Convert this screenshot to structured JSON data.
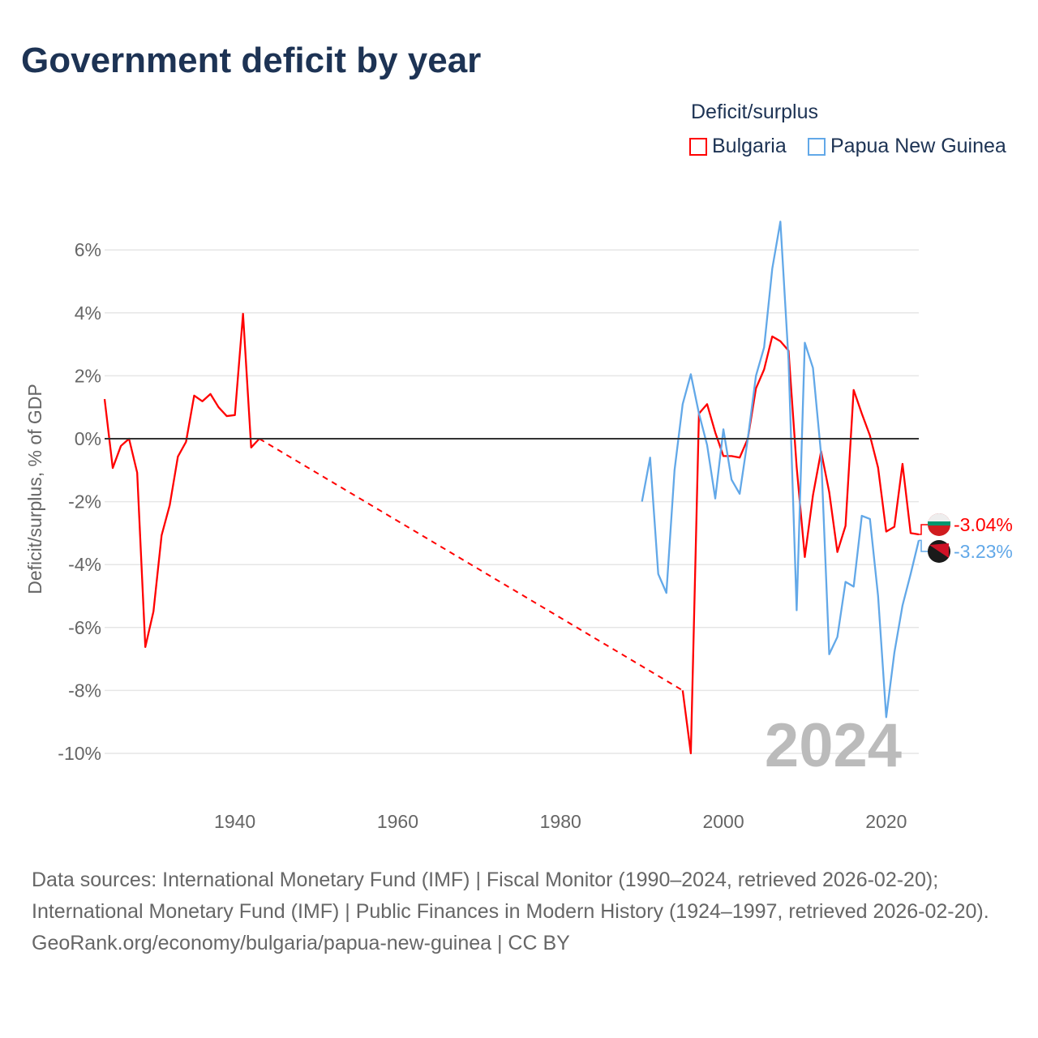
{
  "title": "Government deficit by year",
  "legend": {
    "title": "Deficit/surplus",
    "items": [
      {
        "name": "Bulgaria",
        "color": "#ff0000"
      },
      {
        "name": "Papua New Guinea",
        "color": "#62a8e8"
      }
    ]
  },
  "chart_data": {
    "type": "line",
    "title": "Government deficit by year",
    "xlabel": "",
    "ylabel": "Deficit/surplus, % of GDP",
    "xlim": [
      1924,
      2024
    ],
    "ylim": [
      -10,
      6
    ],
    "xticks": [
      1940,
      1960,
      1980,
      2000,
      2020
    ],
    "yticks": [
      6,
      4,
      2,
      0,
      -2,
      -4,
      -6,
      -8,
      -10
    ],
    "ytick_labels": [
      "6%",
      "4%",
      "2%",
      "0%",
      "-2%",
      "-4%",
      "-6%",
      "-8%",
      "-10%"
    ],
    "watermark": "2024",
    "series": [
      {
        "name": "Bulgaria",
        "color": "#ff0000",
        "end_label": "-3.04%",
        "x": [
          1924,
          1925,
          1926,
          1927,
          1928,
          1929,
          1930,
          1931,
          1932,
          1933,
          1934,
          1935,
          1936,
          1937,
          1938,
          1939,
          1940,
          1941,
          1942,
          1943,
          1995,
          1996,
          1997,
          1998,
          1999,
          2000,
          2001,
          2002,
          2003,
          2004,
          2005,
          2006,
          2007,
          2008,
          2009,
          2010,
          2011,
          2012,
          2013,
          2014,
          2015,
          2016,
          2017,
          2018,
          2019,
          2020,
          2021,
          2022,
          2023,
          2024
        ],
        "y": [
          1.26,
          -0.93,
          -0.23,
          0,
          -1.08,
          -6.62,
          -5.49,
          -3.07,
          -2.11,
          -0.57,
          -0.1,
          1.37,
          1.19,
          1.42,
          1.0,
          0.72,
          0.75,
          3.97,
          -0.28,
          0,
          -8.0,
          -10.0,
          0.8,
          1.1,
          0.2,
          -0.55,
          -0.55,
          -0.6,
          0.0,
          1.6,
          2.2,
          3.25,
          3.1,
          2.8,
          -0.9,
          -3.76,
          -1.8,
          -0.4,
          -1.7,
          -3.6,
          -2.77,
          1.55,
          0.8,
          0.1,
          -0.92,
          -2.95,
          -2.8,
          -0.8,
          -3.0,
          -3.04
        ],
        "gap": [
          1943,
          1995
        ]
      },
      {
        "name": "Papua New Guinea",
        "color": "#62a8e8",
        "end_label": "-3.23%",
        "x": [
          1990,
          1991,
          1992,
          1993,
          1994,
          1995,
          1996,
          1997,
          1998,
          1999,
          2000,
          2001,
          2002,
          2003,
          2004,
          2005,
          2006,
          2007,
          2008,
          2009,
          2010,
          2011,
          2012,
          2013,
          2014,
          2015,
          2016,
          2017,
          2018,
          2019,
          2020,
          2021,
          2022,
          2023,
          2024
        ],
        "y": [
          -2.0,
          -0.6,
          -4.3,
          -4.9,
          -1.0,
          1.1,
          2.05,
          0.8,
          -0.2,
          -1.9,
          0.3,
          -1.3,
          -1.75,
          0.0,
          2.0,
          2.9,
          5.4,
          6.9,
          2.5,
          -5.45,
          3.05,
          2.25,
          -0.5,
          -6.85,
          -6.3,
          -4.55,
          -4.7,
          -2.45,
          -2.55,
          -5.0,
          -8.85,
          -6.8,
          -5.3,
          -4.3,
          -3.23
        ]
      }
    ]
  },
  "footer": {
    "sources": "Data sources: International Monetary Fund (IMF) | Fiscal Monitor (1990–2024, retrieved 2026-02-20); International Monetary Fund (IMF) | Public Finances in Modern History (1924–1997, retrieved 2026-02-20).",
    "link": "GeoRank.org/economy/bulgaria/papua-new-guinea | CC BY"
  }
}
